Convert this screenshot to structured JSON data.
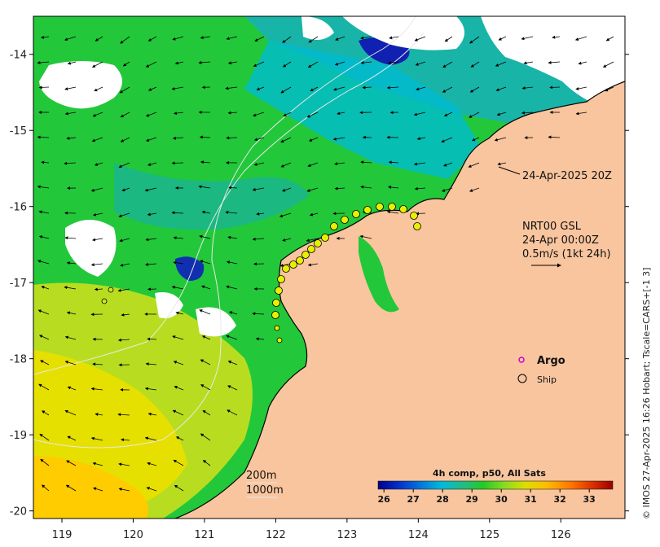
{
  "map": {
    "x_ticks": [
      "119",
      "120",
      "121",
      "122",
      "123",
      "124",
      "125",
      "126"
    ],
    "y_ticks": [
      "-14",
      "-15",
      "-16",
      "-17",
      "-18",
      "-19",
      "-20"
    ],
    "x_range": [
      118.6,
      126.9
    ],
    "y_range": [
      -20.1,
      -13.5
    ]
  },
  "annotations": {
    "timestamp": "24-Apr-2025 20Z",
    "product_line1": "NRT00 GSL",
    "product_line2": "24-Apr 00:00Z",
    "vector_scale": "0.5m/s (1kt 24h)",
    "contour_200": "200m",
    "contour_1000": "1000m"
  },
  "legend": {
    "argo_label": "Argo",
    "ship_label": "Ship",
    "argo_color": "#d000d0",
    "ship_color": "#000000"
  },
  "colorbar": {
    "title": "4h comp, p50, All Sats",
    "ticks": [
      "26",
      "27",
      "28",
      "29",
      "30",
      "31",
      "32",
      "33"
    ],
    "range": [
      25.8,
      33.8
    ],
    "colors": [
      "#00008b",
      "#0033cc",
      "#0077dd",
      "#00bbdd",
      "#22bb88",
      "#22cc22",
      "#88dd22",
      "#dddd00",
      "#ffbb00",
      "#ff7700",
      "#dd3300",
      "#990000"
    ]
  },
  "credit": "© IMOS 27-Apr-2025 16:26 Hobart; Tscale=CARS+[-1 3]",
  "colors": {
    "land": "#f8c59e",
    "ocean_green": "#22cc33",
    "ocean_cyan": "#00b8c8",
    "ocean_blue": "#1030b0",
    "ocean_yellow": "#e0e000",
    "cloud": "#ffffff"
  }
}
